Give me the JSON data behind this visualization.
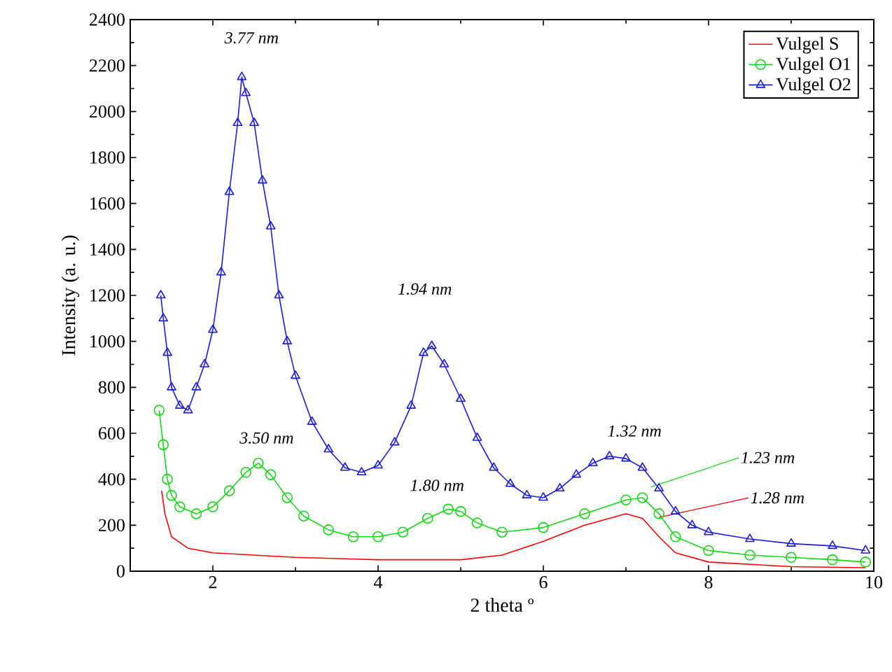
{
  "chart_data": {
    "type": "line",
    "xlabel": "2 theta º",
    "ylabel": "Intensity (a. u.)",
    "xlim": [
      1,
      10
    ],
    "xticks": [
      2,
      4,
      6,
      8,
      10
    ],
    "ylim": [
      0,
      2400
    ],
    "yticks": [
      0,
      200,
      400,
      600,
      800,
      1000,
      1200,
      1400,
      1600,
      1800,
      2000,
      2200,
      2400
    ],
    "grid": false,
    "legend": "top right",
    "line_style": "solid",
    "series": [
      {
        "name": "Vulgel S",
        "color": "#ff0000",
        "marker": "none",
        "x": [
          1.38,
          1.42,
          1.5,
          1.7,
          2.0,
          3.0,
          4.0,
          5.0,
          5.5,
          6.0,
          6.5,
          7.0,
          7.2,
          7.4,
          7.6,
          8.0,
          9.0,
          9.9
        ],
        "values": [
          350,
          250,
          150,
          100,
          80,
          60,
          50,
          50,
          70,
          130,
          200,
          250,
          230,
          150,
          80,
          40,
          20,
          15
        ]
      },
      {
        "name": "Vulgel O1",
        "color": "#11dd11",
        "marker": "circle",
        "x": [
          1.35,
          1.4,
          1.45,
          1.5,
          1.6,
          1.8,
          2.0,
          2.2,
          2.4,
          2.55,
          2.7,
          2.9,
          3.1,
          3.4,
          3.7,
          4.0,
          4.3,
          4.6,
          4.85,
          5.0,
          5.2,
          5.5,
          6.0,
          6.5,
          7.0,
          7.2,
          7.4,
          7.6,
          8.0,
          8.5,
          9.0,
          9.5,
          9.9
        ],
        "values": [
          700,
          550,
          400,
          330,
          280,
          250,
          280,
          350,
          430,
          470,
          420,
          320,
          240,
          180,
          150,
          150,
          170,
          230,
          270,
          260,
          210,
          170,
          190,
          250,
          310,
          320,
          250,
          150,
          90,
          70,
          60,
          50,
          40
        ]
      },
      {
        "name": "Vulgel O2",
        "color": "#1a1ae6",
        "marker": "triangle",
        "x": [
          1.37,
          1.4,
          1.45,
          1.5,
          1.6,
          1.7,
          1.8,
          1.9,
          2.0,
          2.1,
          2.2,
          2.3,
          2.35,
          2.4,
          2.5,
          2.6,
          2.7,
          2.8,
          2.9,
          3.0,
          3.2,
          3.4,
          3.6,
          3.8,
          4.0,
          4.2,
          4.4,
          4.55,
          4.65,
          4.8,
          5.0,
          5.2,
          5.4,
          5.6,
          5.8,
          6.0,
          6.2,
          6.4,
          6.6,
          6.8,
          7.0,
          7.2,
          7.4,
          7.6,
          7.8,
          8.0,
          8.5,
          9.0,
          9.5,
          9.9
        ],
        "values": [
          1200,
          1100,
          950,
          800,
          720,
          700,
          800,
          900,
          1050,
          1300,
          1650,
          1950,
          2150,
          2080,
          1950,
          1700,
          1500,
          1200,
          1000,
          850,
          650,
          530,
          450,
          430,
          460,
          560,
          720,
          950,
          980,
          900,
          750,
          580,
          450,
          380,
          330,
          320,
          360,
          420,
          470,
          500,
          490,
          450,
          360,
          260,
          200,
          170,
          140,
          120,
          110,
          90
        ]
      }
    ],
    "annotations": [
      {
        "text": "3.77 nm",
        "x": 2.35,
        "y": 2150
      },
      {
        "text": "1.94 nm",
        "x": 4.65,
        "y": 990
      },
      {
        "text": "3.50 nm",
        "x": 2.55,
        "y": 470
      },
      {
        "text": "1.80 nm",
        "x": 4.85,
        "y": 270
      },
      {
        "text": "1.32 nm",
        "x": 6.9,
        "y": 500
      },
      {
        "text": "1.23 nm",
        "x": 7.3,
        "y": 366
      },
      {
        "text": "1.28 nm",
        "x": 7.4,
        "y": 234
      }
    ]
  }
}
